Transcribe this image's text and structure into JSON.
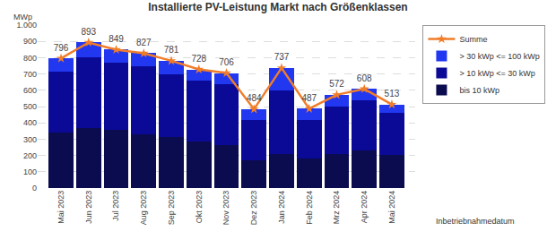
{
  "chart_data": {
    "type": "bar",
    "title": "Installierte PV-Leistung Markt nach Größenklassen",
    "y_label": "MWp",
    "annotations": [
      "Inbetriebnahmedatum"
    ],
    "categories": [
      "Mai 2023",
      "Jun 2023",
      "Jul 2023",
      "Aug 2023",
      "Sep 2023",
      "Okt 2023",
      "Nov 2023",
      "Dez 2023",
      "Jan 2024",
      "Feb 2024",
      "Mrz 2024",
      "Apr 2024",
      "Mai 2024"
    ],
    "stacked": true,
    "grid": true,
    "legend": "right",
    "ylim": [
      0,
      1000
    ],
    "yticks": [
      0,
      100,
      200,
      300,
      400,
      500,
      600,
      700,
      800,
      900,
      {
        "value": 1000,
        "label": "1.000"
      }
    ],
    "series": [
      {
        "name": "bis 10 kWp",
        "color": "#0b0b4f",
        "values": [
          340,
          370,
          355,
          330,
          315,
          285,
          265,
          170,
          210,
          180,
          210,
          230,
          205
        ]
      },
      {
        "name": "> 10 kWp <= 30 kWp",
        "color": "#0a0a96",
        "values": [
          375,
          430,
          415,
          420,
          385,
          375,
          375,
          250,
          390,
          240,
          290,
          310,
          255
        ]
      },
      {
        "name": "> 30 kWp <= 100 kWp",
        "color": "#2138f0",
        "values": [
          81,
          93,
          79,
          77,
          81,
          68,
          66,
          64,
          137,
          67,
          72,
          68,
          53
        ]
      },
      {
        "name": "Summe",
        "type": "line",
        "color": "#f07d2a",
        "marker": "star",
        "data_labels": true,
        "values": [
          796,
          893,
          849,
          827,
          781,
          728,
          706,
          484,
          737,
          487,
          572,
          608,
          513
        ]
      }
    ]
  }
}
